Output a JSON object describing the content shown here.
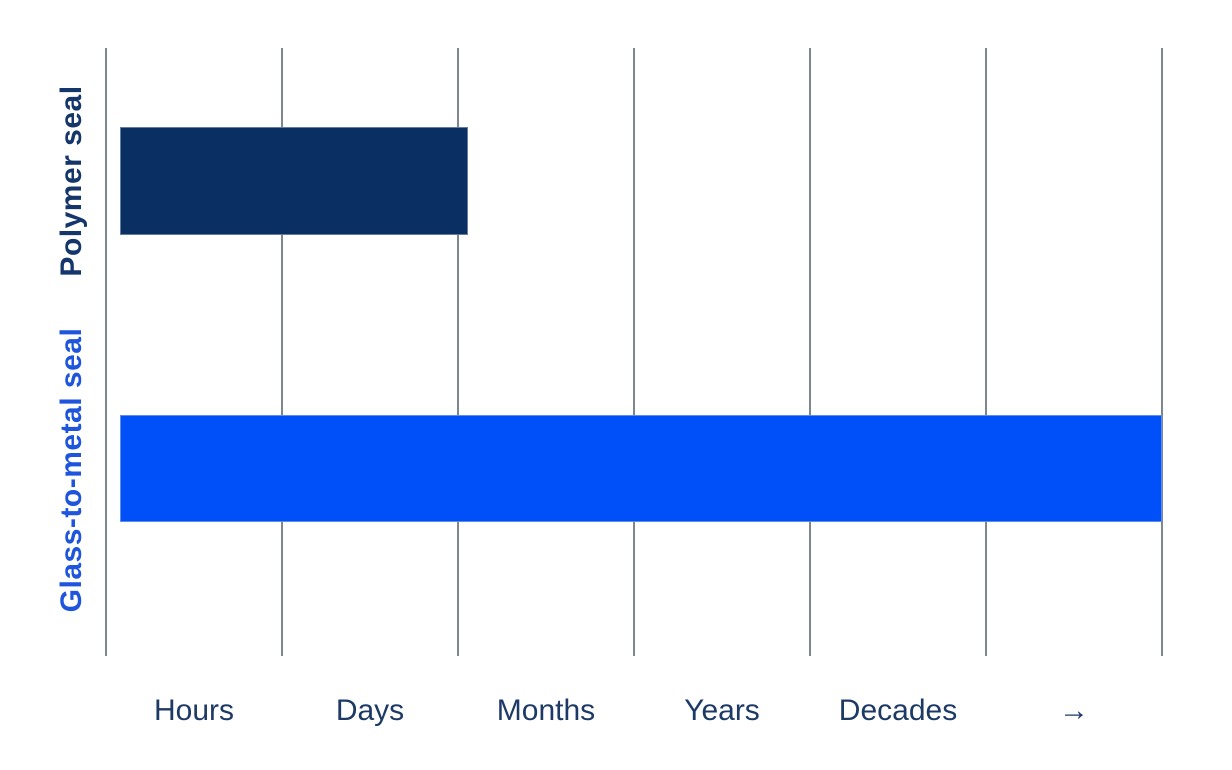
{
  "chart_data": {
    "type": "bar",
    "orientation": "horizontal",
    "title": "",
    "xlabel": "",
    "ylabel": "",
    "x_axis": {
      "tick_labels": [
        "Hours",
        "Days",
        "Months",
        "Years",
        "Decades",
        "→"
      ],
      "range_units": [
        0,
        6
      ],
      "gridlines": true,
      "scale_note": "categorical time-duration scale; arrow indicates beyond decades"
    },
    "y_axis": {
      "categories": [
        "Polymer seal",
        "Glass-to-metal seal"
      ]
    },
    "series": [
      {
        "name": "Polymer seal",
        "value_units": 2.06,
        "end_fraction": 0.343,
        "reading": "just past Days (roughly days to a few months)",
        "bar_color": "#0a2f62",
        "label_color": "#14366b"
      },
      {
        "name": "Glass-to-metal seal",
        "value_units": 6,
        "end_fraction": 1.0,
        "reading": "full scale — decades and beyond",
        "bar_color": "#0050fa",
        "label_color": "#1e55dc"
      }
    ],
    "colors": {
      "gridline": "#7e868e",
      "tick_text": "#1d3a66",
      "background": "#ffffff"
    },
    "legend": {
      "shown": false
    }
  }
}
